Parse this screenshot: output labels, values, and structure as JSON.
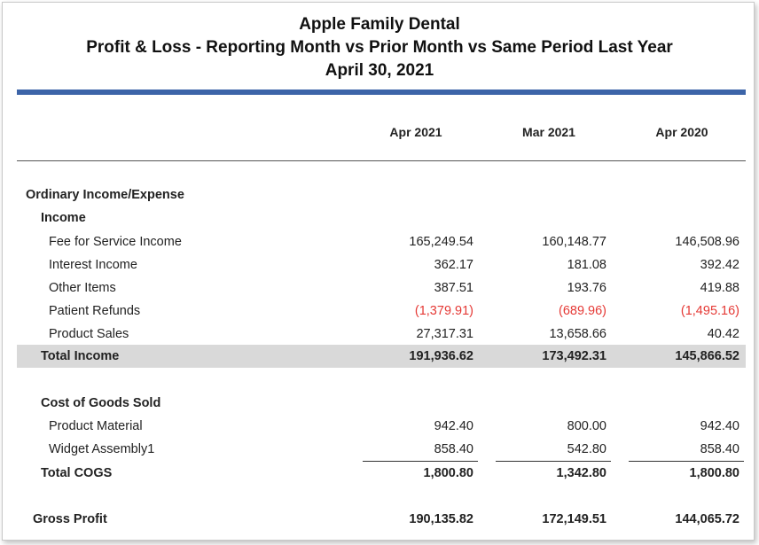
{
  "report": {
    "company": "Apple Family Dental",
    "title": "Profit & Loss - Reporting Month vs Prior Month vs Same Period Last Year",
    "date": "April 30, 2021"
  },
  "columns": [
    "Apr 2021",
    "Mar 2021",
    "Apr 2020"
  ],
  "sections": {
    "ordinary": "Ordinary Income/Expense",
    "income": "Income",
    "cogs": "Cost of Goods Sold"
  },
  "income_rows": [
    {
      "label": "Fee for Service Income",
      "values": [
        "165,249.54",
        "160,148.77",
        "146,508.96"
      ],
      "negative": false
    },
    {
      "label": "Interest Income",
      "values": [
        "362.17",
        "181.08",
        "392.42"
      ],
      "negative": false
    },
    {
      "label": "Other Items",
      "values": [
        "387.51",
        "193.76",
        "419.88"
      ],
      "negative": false
    },
    {
      "label": "Patient Refunds",
      "values": [
        "(1,379.91)",
        "(689.96)",
        "(1,495.16)"
      ],
      "negative": true
    },
    {
      "label": "Product Sales",
      "values": [
        "27,317.31",
        "13,658.66",
        "40.42"
      ],
      "negative": false
    }
  ],
  "total_income": {
    "label": "Total Income",
    "values": [
      "191,936.62",
      "173,492.31",
      "145,866.52"
    ]
  },
  "cogs_rows": [
    {
      "label": "Product Material",
      "values": [
        "942.40",
        "800.00",
        "942.40"
      ]
    },
    {
      "label": "Widget Assembly1",
      "values": [
        "858.40",
        "542.80",
        "858.40"
      ]
    }
  ],
  "total_cogs": {
    "label": "Total COGS",
    "values": [
      "1,800.80",
      "1,342.80",
      "1,800.80"
    ]
  },
  "gross_profit": {
    "label": "Gross Profit",
    "values": [
      "190,135.82",
      "172,149.51",
      "144,065.72"
    ]
  },
  "colors": {
    "accent_bar": "#3c64a8",
    "negative": "#e53935",
    "total_row_bg": "#d9d9d9"
  }
}
